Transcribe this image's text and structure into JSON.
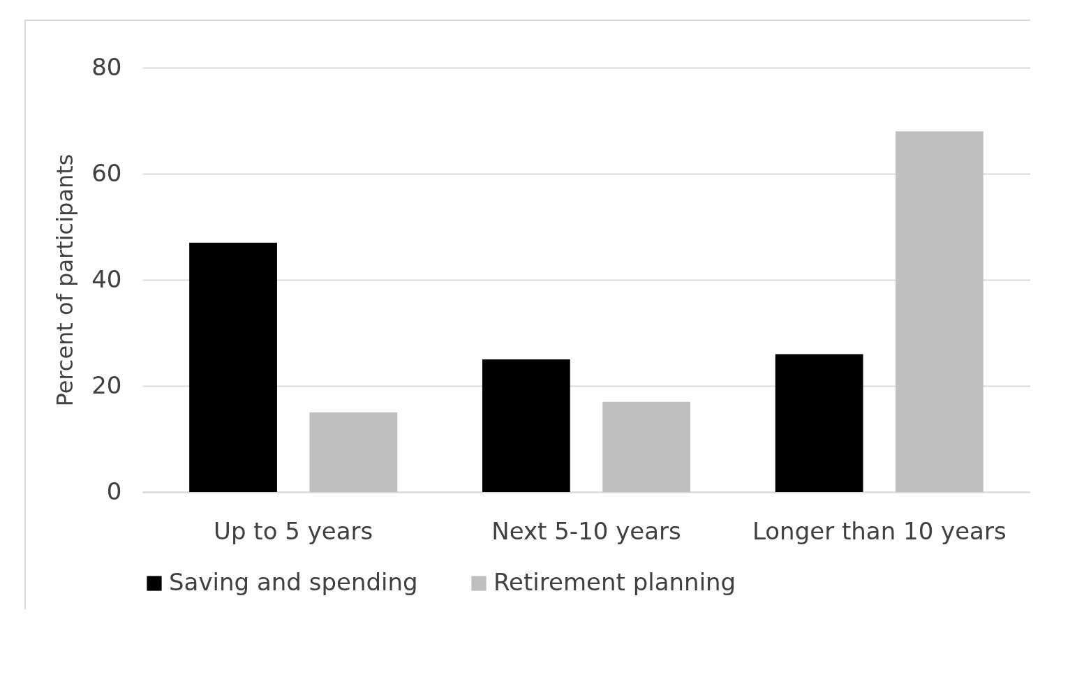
{
  "chart_data": {
    "type": "bar",
    "ylabel": "Percent of participants",
    "categories": [
      "Up to 5 years",
      "Next 5-10 years",
      "Longer than 10 years"
    ],
    "series": [
      {
        "name": "Saving and spending",
        "color": "#000000",
        "values": [
          47,
          25,
          26
        ]
      },
      {
        "name": "Retirement planning",
        "color": "#bfbfbf",
        "values": [
          15,
          17,
          68
        ]
      }
    ],
    "ylim": [
      0,
      80
    ],
    "yticks": [
      0,
      20,
      40,
      60,
      80
    ],
    "grid": "y",
    "legend": "bottom"
  }
}
